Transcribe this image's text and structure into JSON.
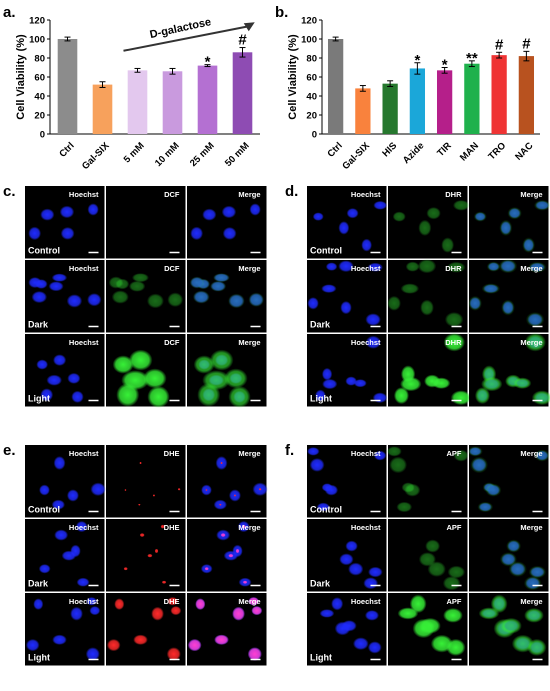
{
  "chart_data": [
    {
      "panel": "a.",
      "type": "bar",
      "ylabel": "Cell Viability (%)",
      "ylim": [
        0,
        120
      ],
      "yticks": [
        0,
        20,
        40,
        60,
        80,
        100,
        120
      ],
      "categories": [
        "Ctrl",
        "Gal-SIX",
        "5 mM",
        "10 mM",
        "25 mM",
        "50 mM"
      ],
      "values": [
        100,
        52,
        67,
        66,
        72,
        86
      ],
      "errors": [
        2,
        3,
        2,
        3,
        1,
        5
      ],
      "colors": [
        "#8c8c8c",
        "#f7a15c",
        "#e3c8ee",
        "#c99ade",
        "#b470d2",
        "#8e4cb3"
      ],
      "significance": [
        "",
        "",
        "",
        "",
        "*",
        "#"
      ],
      "annotation": "D-galactose",
      "grid": false
    },
    {
      "panel": "b.",
      "type": "bar",
      "ylabel": "Cell Viability (%)",
      "ylim": [
        0,
        120
      ],
      "yticks": [
        0,
        20,
        40,
        60,
        80,
        100,
        120
      ],
      "categories": [
        "Ctrl",
        "Gal-SIX",
        "HIS",
        "Azide",
        "TIR",
        "MAN",
        "TRO",
        "NAC"
      ],
      "values": [
        100,
        48,
        53,
        69,
        67,
        74,
        83,
        82
      ],
      "errors": [
        2,
        3,
        3,
        6,
        3,
        3,
        3,
        5
      ],
      "colors": [
        "#7a7a7a",
        "#f9823d",
        "#26782e",
        "#1ba7d9",
        "#b51f8a",
        "#1fb14c",
        "#ef3434",
        "#b8521f"
      ],
      "significance": [
        "",
        "",
        "",
        "*",
        "*",
        "**",
        "#",
        "#"
      ],
      "grid": false
    }
  ],
  "micrographs": [
    {
      "panel": "c.",
      "probe": "DCF",
      "channels": [
        "Hoechst",
        "DCF",
        "Merge"
      ],
      "rows": [
        "Control",
        "Dark",
        "Light"
      ],
      "probe_color": "#2ee82e"
    },
    {
      "panel": "d.",
      "probe": "DHR",
      "channels": [
        "Hoechst",
        "DHR",
        "Merge"
      ],
      "rows": [
        "Control",
        "Dark",
        "Light"
      ],
      "probe_color": "#3bd13b"
    },
    {
      "panel": "e.",
      "probe": "DHE",
      "channels": [
        "Hoechst",
        "DHE",
        "Merge"
      ],
      "rows": [
        "Control",
        "Dark",
        "Light"
      ],
      "probe_color": "#ff2a2a",
      "merge_color": "#ff33cc"
    },
    {
      "panel": "f.",
      "probe": "APF",
      "channels": [
        "Hoechst",
        "APF",
        "Merge"
      ],
      "rows": [
        "Control",
        "Dark",
        "Light"
      ],
      "probe_color": "#3bd13b"
    }
  ]
}
